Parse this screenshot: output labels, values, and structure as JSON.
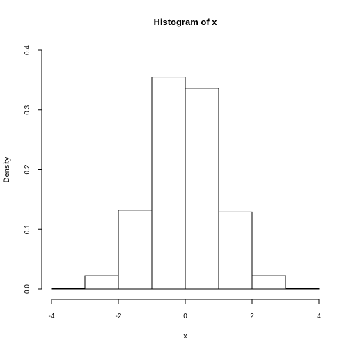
{
  "chart_data": {
    "type": "bar",
    "title": "Histogram of x",
    "xlabel": "x",
    "ylabel": "Density",
    "xlim": [
      -4,
      4
    ],
    "ylim": [
      0,
      0.4
    ],
    "x_ticks": [
      -4,
      -2,
      0,
      2,
      4
    ],
    "y_ticks": [
      0.0,
      0.1,
      0.2,
      0.3,
      0.4
    ],
    "y_tick_labels": [
      "0.0",
      "0.1",
      "0.2",
      "0.3",
      "0.4"
    ],
    "bins": [
      {
        "start": -4,
        "end": -3,
        "density": 0.001
      },
      {
        "start": -3,
        "end": -2,
        "density": 0.022
      },
      {
        "start": -2,
        "end": -1,
        "density": 0.132
      },
      {
        "start": -1,
        "end": 0,
        "density": 0.355
      },
      {
        "start": 0,
        "end": 1,
        "density": 0.336
      },
      {
        "start": 1,
        "end": 2,
        "density": 0.129
      },
      {
        "start": 2,
        "end": 3,
        "density": 0.022
      },
      {
        "start": 3,
        "end": 4,
        "density": 0.001
      }
    ],
    "grid": false,
    "legend": "none"
  }
}
